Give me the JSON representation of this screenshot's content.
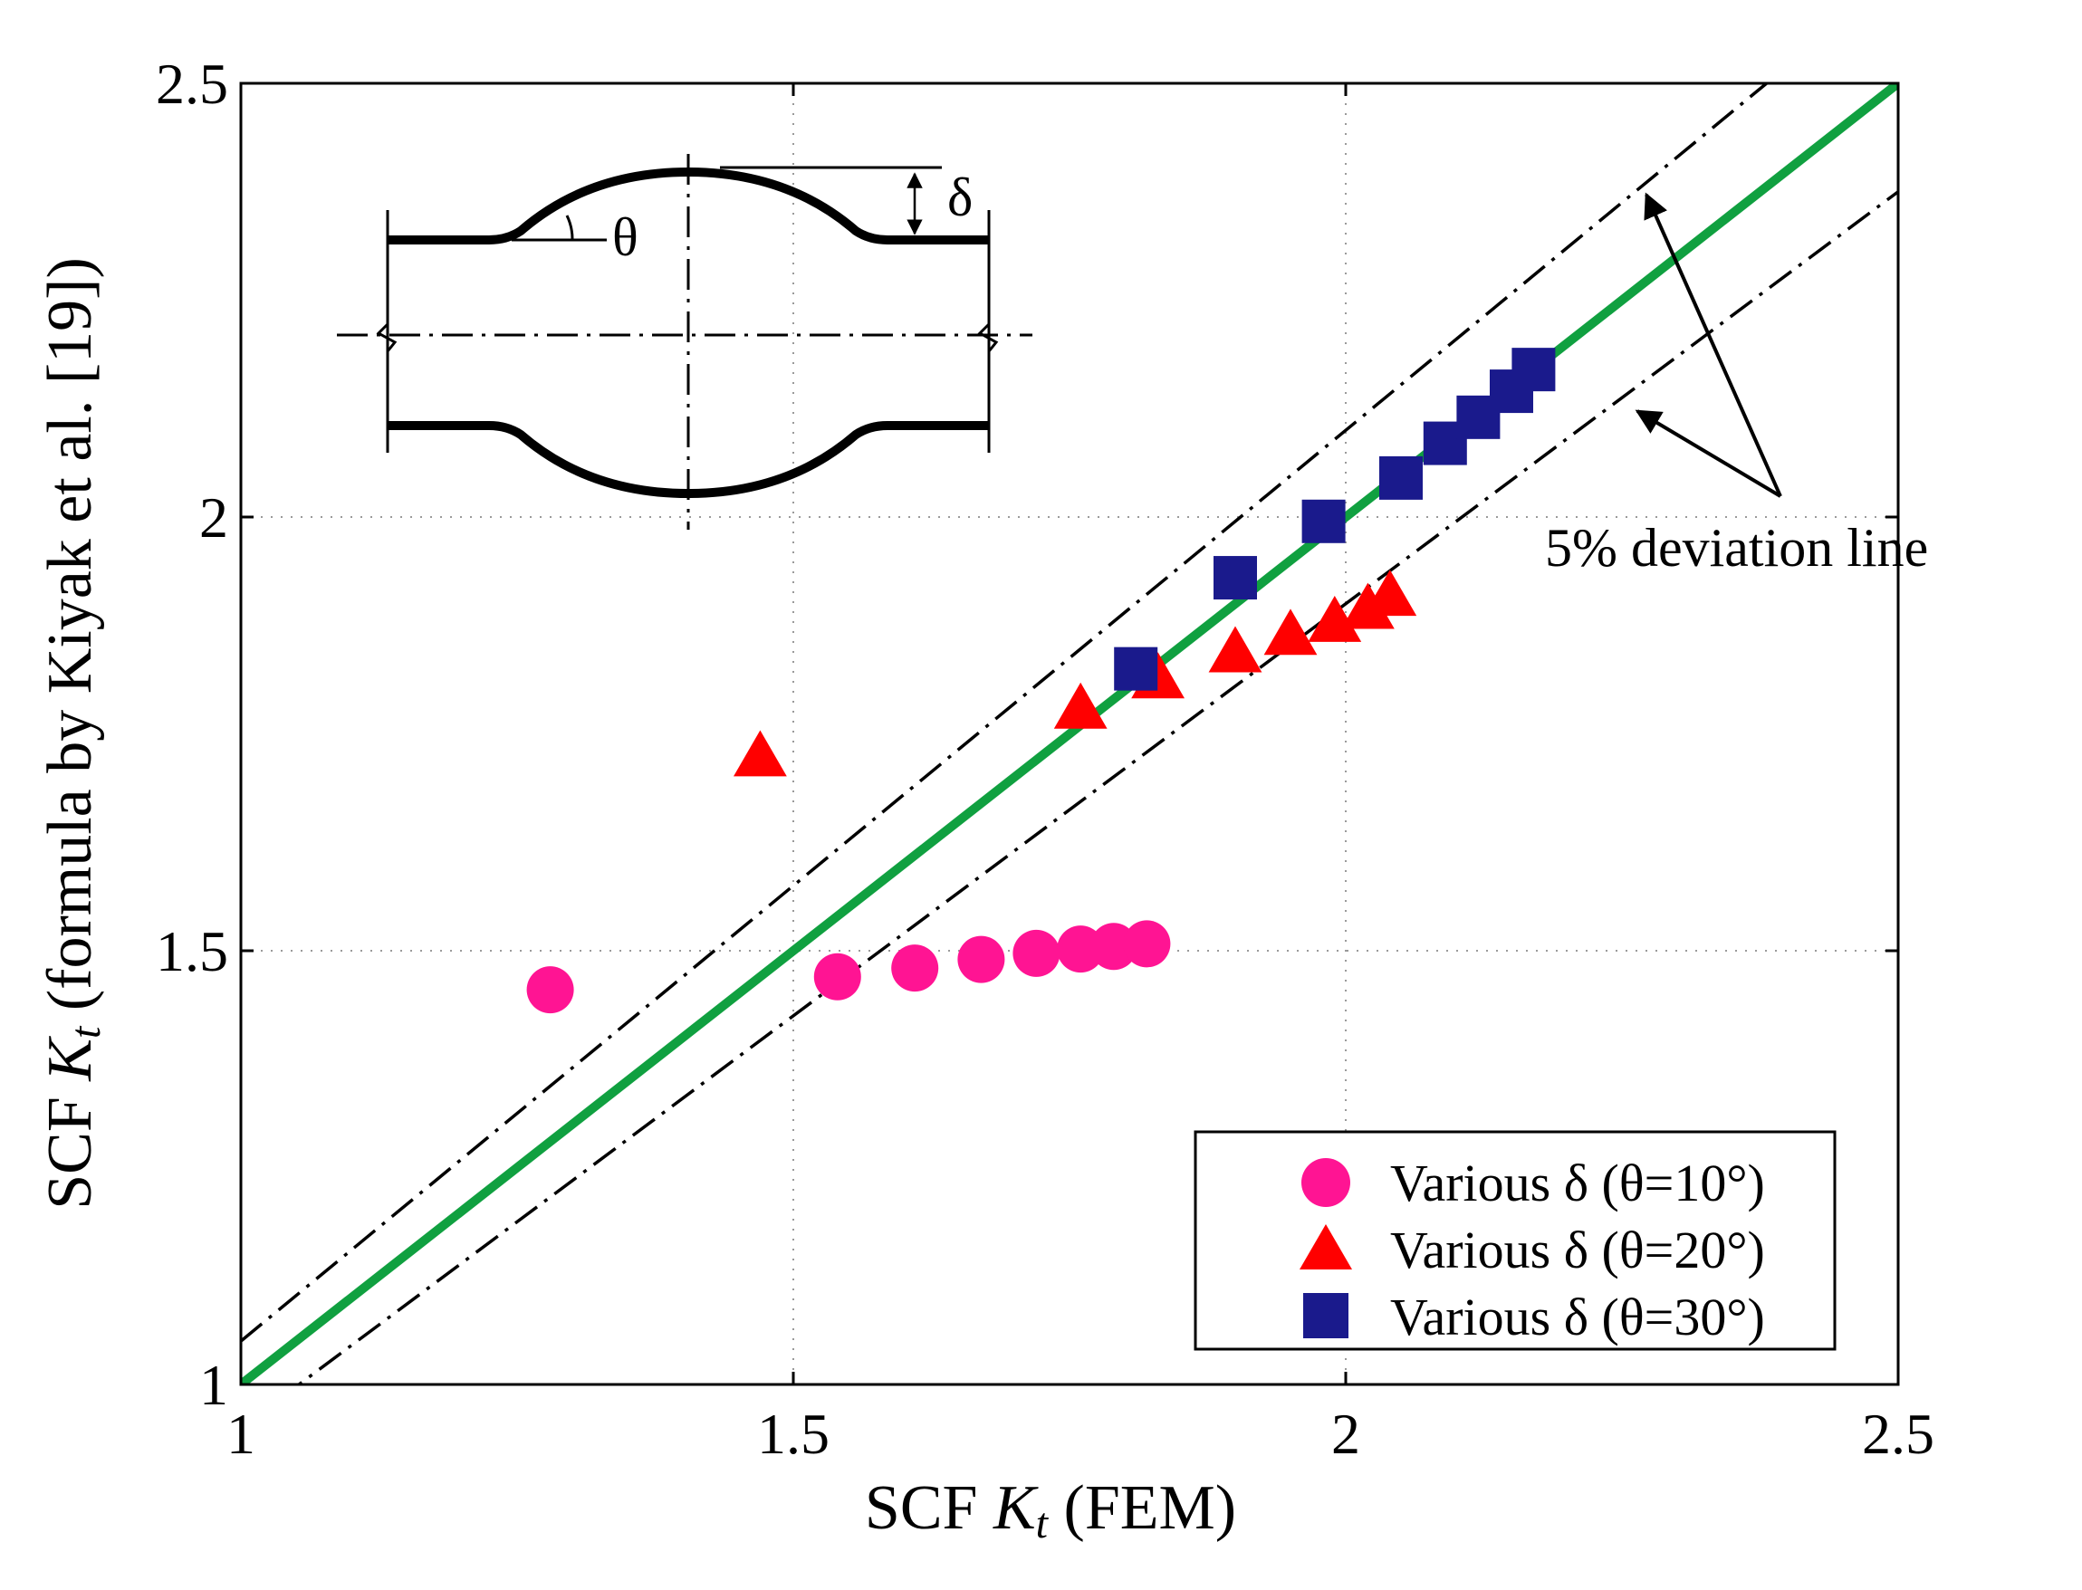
{
  "chart_data": {
    "type": "scatter",
    "xlabel": {
      "prefix": "SCF ",
      "K": "K",
      "sub": "t",
      "suffix": " (FEM)"
    },
    "ylabel": {
      "prefix": "SCF ",
      "K": "K",
      "sub": "t",
      "suffix": " (formula by Kiyak et al. [19])"
    },
    "xlim": [
      1,
      2.5
    ],
    "ylim": [
      1,
      2.5
    ],
    "xticks": [
      1,
      1.5,
      2,
      2.5
    ],
    "yticks": [
      1,
      1.5,
      2,
      2.5
    ],
    "xtick_labels": [
      "1",
      "1.5",
      "2",
      "2.5"
    ],
    "ytick_labels": [
      "1",
      "1.5",
      "2",
      "2.5"
    ],
    "grid": true,
    "legend_position": "bottom-right",
    "reference_lines": [
      {
        "name": "equality",
        "slope": 1.0,
        "color": "#10a040",
        "style": "solid"
      },
      {
        "name": "upper-5%",
        "slope": 1.05,
        "color": "#000000",
        "style": "dashdot"
      },
      {
        "name": "lower-5%",
        "slope": 0.95,
        "color": "#000000",
        "style": "dashdot"
      }
    ],
    "series": [
      {
        "name": "Various δ (θ=10°)",
        "marker": "circle",
        "color": "#ff1493",
        "x": [
          1.28,
          1.54,
          1.61,
          1.67,
          1.72,
          1.76,
          1.79,
          1.82
        ],
        "y": [
          1.455,
          1.47,
          1.48,
          1.49,
          1.497,
          1.502,
          1.505,
          1.508
        ]
      },
      {
        "name": "Various δ (θ=20°)",
        "marker": "triangle",
        "color": "#ff0000",
        "x": [
          1.47,
          1.76,
          1.83,
          1.9,
          1.95,
          1.99,
          2.02,
          2.04
        ],
        "y": [
          1.725,
          1.78,
          1.815,
          1.845,
          1.865,
          1.88,
          1.895,
          1.91
        ]
      },
      {
        "name": "Various δ (θ=30°)",
        "marker": "square",
        "color": "#1a1a8c",
        "x": [
          1.81,
          1.9,
          1.98,
          2.05,
          2.09,
          2.12,
          2.15,
          2.17
        ],
        "y": [
          1.825,
          1.93,
          1.995,
          2.045,
          2.085,
          2.115,
          2.145,
          2.17
        ]
      }
    ],
    "annotations": {
      "deviation_label": "5% deviation line",
      "delta_symbol": "δ",
      "theta_symbol": "θ"
    }
  }
}
